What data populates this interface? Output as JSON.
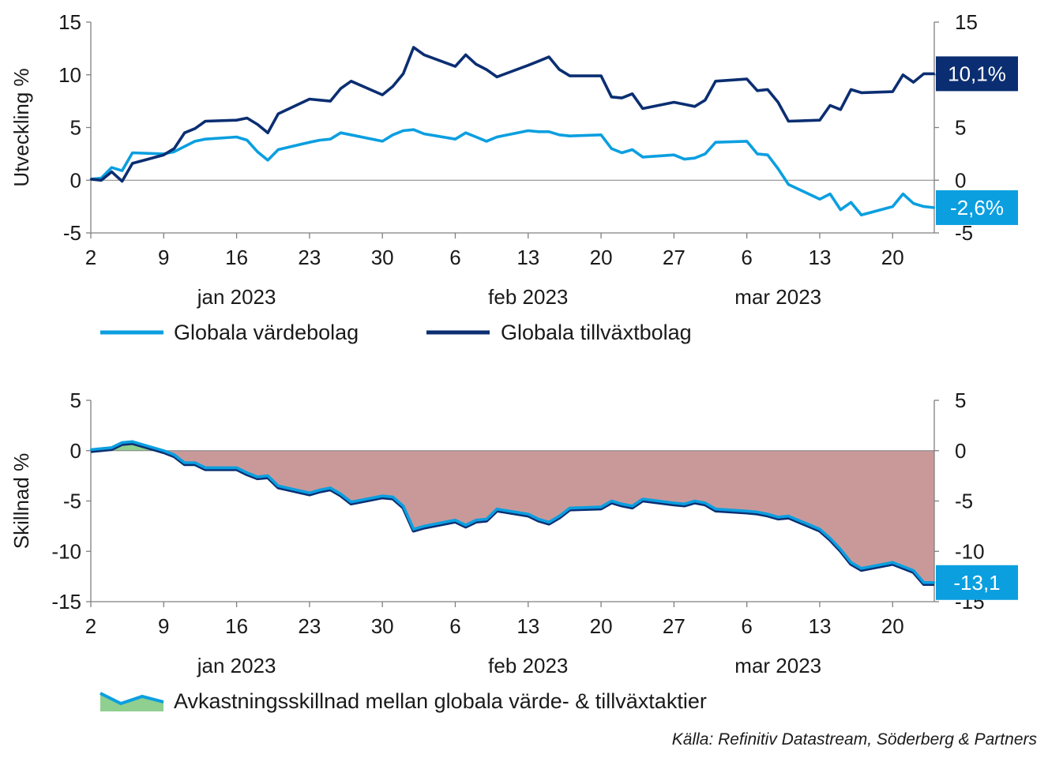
{
  "source": "Källa: Refinitiv Datastream, Söderberg & Partners",
  "colors": {
    "value_line": "#0b9fe0",
    "growth_line": "#0b2e72",
    "diff_line": "#0b9fe0",
    "negative_fill": "#c9999a",
    "positive_fill": "#8fcf8f",
    "axis": "#808080",
    "text": "#1a1a1a"
  },
  "chart_data": [
    {
      "type": "line",
      "ylabel": "Utveckling %",
      "ylim": [
        -5,
        15
      ],
      "yticks": [
        -5,
        0,
        5,
        10,
        15
      ],
      "ytick_labels": [
        "-5",
        "0",
        "5",
        "10",
        "15"
      ],
      "xlim": [
        "2023-01-02",
        "2023-03-24"
      ],
      "xticks": [
        {
          "date": "2023-01-02",
          "label": "2"
        },
        {
          "date": "2023-01-09",
          "label": "9"
        },
        {
          "date": "2023-01-16",
          "label": "16"
        },
        {
          "date": "2023-01-23",
          "label": "23"
        },
        {
          "date": "2023-01-30",
          "label": "30"
        },
        {
          "date": "2023-02-06",
          "label": "6"
        },
        {
          "date": "2023-02-13",
          "label": "13"
        },
        {
          "date": "2023-02-20",
          "label": "20"
        },
        {
          "date": "2023-02-27",
          "label": "27"
        },
        {
          "date": "2023-03-06",
          "label": "6"
        },
        {
          "date": "2023-03-13",
          "label": "13"
        },
        {
          "date": "2023-03-20",
          "label": "20"
        }
      ],
      "month_labels": [
        {
          "date": "2023-01-16",
          "label": "jan 2023"
        },
        {
          "date": "2023-02-13",
          "label": "feb 2023"
        },
        {
          "date": "2023-03-09",
          "label": "mar 2023"
        }
      ],
      "legend": "bottom",
      "grid": false,
      "x": [
        "2023-01-02",
        "2023-01-03",
        "2023-01-04",
        "2023-01-05",
        "2023-01-06",
        "2023-01-09",
        "2023-01-10",
        "2023-01-11",
        "2023-01-12",
        "2023-01-13",
        "2023-01-16",
        "2023-01-17",
        "2023-01-18",
        "2023-01-19",
        "2023-01-20",
        "2023-01-23",
        "2023-01-24",
        "2023-01-25",
        "2023-01-26",
        "2023-01-27",
        "2023-01-30",
        "2023-01-31",
        "2023-02-01",
        "2023-02-02",
        "2023-02-03",
        "2023-02-06",
        "2023-02-07",
        "2023-02-08",
        "2023-02-09",
        "2023-02-10",
        "2023-02-13",
        "2023-02-14",
        "2023-02-15",
        "2023-02-16",
        "2023-02-17",
        "2023-02-20",
        "2023-02-21",
        "2023-02-22",
        "2023-02-23",
        "2023-02-24",
        "2023-02-27",
        "2023-02-28",
        "2023-03-01",
        "2023-03-02",
        "2023-03-03",
        "2023-03-06",
        "2023-03-07",
        "2023-03-08",
        "2023-03-09",
        "2023-03-10",
        "2023-03-13",
        "2023-03-14",
        "2023-03-15",
        "2023-03-16",
        "2023-03-17",
        "2023-03-20",
        "2023-03-21",
        "2023-03-22",
        "2023-03-23",
        "2023-03-24"
      ],
      "series": [
        {
          "name": "Globala värdebolag",
          "color": "#0b9fe0",
          "end_label": "-2,6%",
          "values": [
            0.1,
            0.2,
            1.2,
            0.9,
            2.6,
            2.5,
            2.7,
            3.2,
            3.7,
            3.9,
            4.1,
            3.8,
            2.7,
            1.9,
            2.9,
            3.6,
            3.8,
            3.9,
            4.5,
            4.3,
            3.7,
            4.3,
            4.7,
            4.8,
            4.4,
            3.9,
            4.5,
            4.1,
            3.7,
            4.1,
            4.7,
            4.6,
            4.6,
            4.3,
            4.2,
            4.3,
            3.0,
            2.6,
            2.9,
            2.2,
            2.4,
            2.0,
            2.1,
            2.5,
            3.6,
            3.7,
            2.5,
            2.4,
            1.1,
            -0.4,
            -1.8,
            -1.3,
            -2.8,
            -2.1,
            -3.3,
            -2.5,
            -1.3,
            -2.2,
            -2.5,
            -2.6
          ]
        },
        {
          "name": "Globala tillväxtbolag",
          "color": "#0b2e72",
          "end_label": "10,1%",
          "values": [
            0.1,
            0.0,
            0.8,
            -0.1,
            1.6,
            2.4,
            3.0,
            4.5,
            4.9,
            5.6,
            5.7,
            5.9,
            5.3,
            4.5,
            6.3,
            7.7,
            7.6,
            7.5,
            8.7,
            9.4,
            8.1,
            8.9,
            10.1,
            12.6,
            11.9,
            10.8,
            11.9,
            11.0,
            10.5,
            9.8,
            10.9,
            11.3,
            11.7,
            10.5,
            9.9,
            9.9,
            7.9,
            7.8,
            8.2,
            6.8,
            7.4,
            7.2,
            7.0,
            7.6,
            9.4,
            9.6,
            8.5,
            8.6,
            7.4,
            5.6,
            5.7,
            7.1,
            6.7,
            8.6,
            8.3,
            8.4,
            10.0,
            9.3,
            10.1,
            10.1
          ]
        }
      ]
    },
    {
      "type": "area",
      "ylabel": "Skillnad %",
      "ylim": [
        -15,
        5
      ],
      "yticks": [
        -15,
        -10,
        -5,
        0,
        5
      ],
      "ytick_labels": [
        "-15",
        "-10",
        "-5",
        "0",
        "5"
      ],
      "xlim": [
        "2023-01-02",
        "2023-03-24"
      ],
      "xticks": [
        {
          "date": "2023-01-02",
          "label": "2"
        },
        {
          "date": "2023-01-09",
          "label": "9"
        },
        {
          "date": "2023-01-16",
          "label": "16"
        },
        {
          "date": "2023-01-23",
          "label": "23"
        },
        {
          "date": "2023-01-30",
          "label": "30"
        },
        {
          "date": "2023-02-06",
          "label": "6"
        },
        {
          "date": "2023-02-13",
          "label": "13"
        },
        {
          "date": "2023-02-20",
          "label": "20"
        },
        {
          "date": "2023-02-27",
          "label": "27"
        },
        {
          "date": "2023-03-06",
          "label": "6"
        },
        {
          "date": "2023-03-13",
          "label": "13"
        },
        {
          "date": "2023-03-20",
          "label": "20"
        }
      ],
      "month_labels": [
        {
          "date": "2023-01-16",
          "label": "jan 2023"
        },
        {
          "date": "2023-02-13",
          "label": "feb 2023"
        },
        {
          "date": "2023-03-09",
          "label": "mar 2023"
        }
      ],
      "legend": "bottom",
      "grid": false,
      "x": [
        "2023-01-02",
        "2023-01-04",
        "2023-01-05",
        "2023-01-06",
        "2023-01-09",
        "2023-01-10",
        "2023-01-11",
        "2023-01-12",
        "2023-01-13",
        "2023-01-16",
        "2023-01-17",
        "2023-01-18",
        "2023-01-19",
        "2023-01-20",
        "2023-01-23",
        "2023-01-24",
        "2023-01-25",
        "2023-01-26",
        "2023-01-27",
        "2023-01-30",
        "2023-01-31",
        "2023-02-01",
        "2023-02-02",
        "2023-02-03",
        "2023-02-06",
        "2023-02-07",
        "2023-02-08",
        "2023-02-09",
        "2023-02-10",
        "2023-02-13",
        "2023-02-14",
        "2023-02-15",
        "2023-02-16",
        "2023-02-17",
        "2023-02-20",
        "2023-02-21",
        "2023-02-22",
        "2023-02-23",
        "2023-02-24",
        "2023-02-27",
        "2023-02-28",
        "2023-03-01",
        "2023-03-02",
        "2023-03-03",
        "2023-03-06",
        "2023-03-07",
        "2023-03-08",
        "2023-03-09",
        "2023-03-10",
        "2023-03-13",
        "2023-03-14",
        "2023-03-15",
        "2023-03-16",
        "2023-03-17",
        "2023-03-20",
        "2023-03-21",
        "2023-03-22",
        "2023-03-23",
        "2023-03-24"
      ],
      "series": [
        {
          "name": "Avkastningsskillnad mellan globala värde- & tillväxtaktier",
          "color": "#0b9fe0",
          "end_label": "-13,1",
          "values": [
            0.1,
            0.3,
            0.8,
            0.9,
            0.0,
            -0.4,
            -1.2,
            -1.2,
            -1.7,
            -1.7,
            -2.2,
            -2.6,
            -2.5,
            -3.5,
            -4.2,
            -3.9,
            -3.7,
            -4.3,
            -5.1,
            -4.5,
            -4.6,
            -5.5,
            -7.8,
            -7.5,
            -6.9,
            -7.4,
            -6.9,
            -6.8,
            -5.8,
            -6.3,
            -6.8,
            -7.1,
            -6.5,
            -5.7,
            -5.6,
            -5.0,
            -5.3,
            -5.5,
            -4.8,
            -5.2,
            -5.3,
            -5.0,
            -5.2,
            -5.8,
            -6.0,
            -6.1,
            -6.3,
            -6.6,
            -6.5,
            -7.8,
            -8.7,
            -9.8,
            -11.1,
            -11.7,
            -11.1,
            -11.5,
            -11.9,
            -13.1,
            -13.1
          ]
        }
      ]
    }
  ]
}
